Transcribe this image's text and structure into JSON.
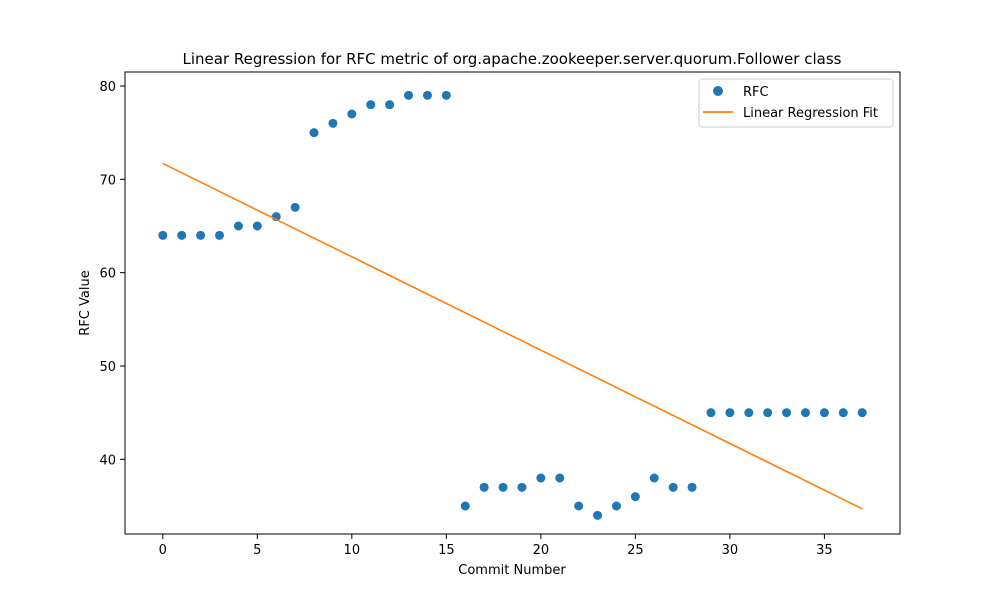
{
  "chart_data": {
    "type": "scatter",
    "title": "Linear Regression for RFC metric of org.apache.zookeeper.server.quorum.Follower class",
    "xlabel": "Commit Number",
    "ylabel": "RFC Value",
    "xlim": [
      -2,
      39
    ],
    "ylim": [
      32,
      81.5
    ],
    "xticks": [
      0,
      5,
      10,
      15,
      20,
      25,
      30,
      35
    ],
    "yticks": [
      40,
      50,
      60,
      70,
      80
    ],
    "grid": false,
    "legend_position": "top-right",
    "series": [
      {
        "name": "RFC",
        "kind": "scatter",
        "color": "#1f77b4",
        "x": [
          0,
          1,
          2,
          3,
          4,
          5,
          6,
          7,
          8,
          9,
          10,
          11,
          12,
          13,
          14,
          15,
          16,
          17,
          18,
          19,
          20,
          21,
          22,
          23,
          24,
          25,
          26,
          27,
          28,
          29,
          30,
          31,
          32,
          33,
          34,
          35,
          36,
          37
        ],
        "y": [
          64,
          64,
          64,
          64,
          65,
          65,
          66,
          67,
          75,
          76,
          77,
          78,
          78,
          79,
          79,
          79,
          35,
          37,
          37,
          37,
          38,
          38,
          35,
          34,
          35,
          36,
          38,
          37,
          37,
          45,
          45,
          45,
          45,
          45,
          45,
          45,
          45,
          45
        ]
      },
      {
        "name": "Linear Regression Fit",
        "kind": "line",
        "color": "#ff7f0e",
        "x": [
          0,
          37
        ],
        "y": [
          71.7,
          34.7
        ]
      }
    ]
  }
}
